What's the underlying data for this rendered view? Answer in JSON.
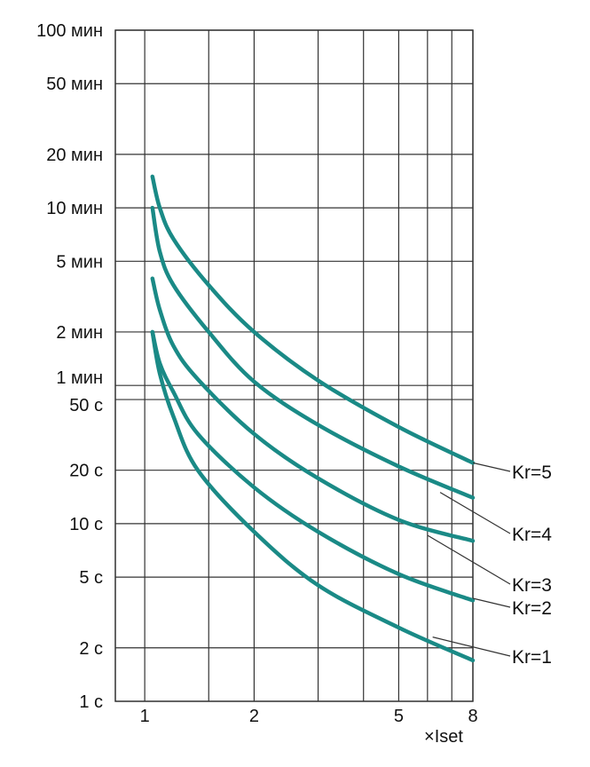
{
  "chart_data": {
    "type": "line",
    "title": "",
    "xlabel": "×Iset",
    "ylabel": "",
    "x_scale": "log",
    "y_scale": "log",
    "xlim": [
      0.83,
      8
    ],
    "ylim": [
      1,
      6000
    ],
    "grid": true,
    "x_ticks": [
      {
        "value": 1,
        "label": "1"
      },
      {
        "value": 2,
        "label": "2"
      },
      {
        "value": 5,
        "label": "5"
      },
      {
        "value": 8,
        "label": "8"
      }
    ],
    "x_gridlines": [
      1,
      1.5,
      2,
      3,
      4,
      5,
      6,
      7,
      8
    ],
    "y_ticks": [
      {
        "value": 1,
        "label": "1 с"
      },
      {
        "value": 2,
        "label": "2 с"
      },
      {
        "value": 5,
        "label": "5 с"
      },
      {
        "value": 10,
        "label": "10 с"
      },
      {
        "value": 20,
        "label": "20 с"
      },
      {
        "value": 50,
        "label": "50 с"
      },
      {
        "value": 60,
        "label": "1 мин"
      },
      {
        "value": 120,
        "label": "2 мин"
      },
      {
        "value": 300,
        "label": "5 мин"
      },
      {
        "value": 600,
        "label": "10 мин"
      },
      {
        "value": 1200,
        "label": "20 мин"
      },
      {
        "value": 3000,
        "label": "50 мин"
      },
      {
        "value": 6000,
        "label": "100 мин"
      }
    ],
    "series": [
      {
        "name": "Kr=1",
        "points": [
          [
            1.05,
            120
          ],
          [
            1.1,
            70
          ],
          [
            1.2,
            40
          ],
          [
            1.4,
            20
          ],
          [
            2,
            9
          ],
          [
            3,
            4.5
          ],
          [
            5,
            2.6
          ],
          [
            8,
            1.7
          ]
        ]
      },
      {
        "name": "Kr=2",
        "points": [
          [
            1.05,
            120
          ],
          [
            1.1,
            80
          ],
          [
            1.2,
            55
          ],
          [
            1.4,
            32
          ],
          [
            2,
            16
          ],
          [
            3,
            9
          ],
          [
            5,
            5.2
          ],
          [
            8,
            3.7
          ]
        ]
      },
      {
        "name": "Kr=3",
        "points": [
          [
            1.05,
            240
          ],
          [
            1.1,
            160
          ],
          [
            1.2,
            100
          ],
          [
            1.4,
            65
          ],
          [
            2,
            32
          ],
          [
            3,
            18
          ],
          [
            5,
            10.5
          ],
          [
            8,
            8
          ]
        ]
      },
      {
        "name": "Kr=4",
        "points": [
          [
            1.05,
            600
          ],
          [
            1.1,
            340
          ],
          [
            1.2,
            220
          ],
          [
            1.5,
            120
          ],
          [
            2,
            63
          ],
          [
            3,
            36
          ],
          [
            5,
            21
          ],
          [
            8,
            14
          ]
        ]
      },
      {
        "name": "Kr=5",
        "points": [
          [
            1.05,
            900
          ],
          [
            1.1,
            600
          ],
          [
            1.2,
            400
          ],
          [
            1.5,
            220
          ],
          [
            2,
            120
          ],
          [
            3,
            64
          ],
          [
            5,
            35
          ],
          [
            8,
            22
          ]
        ]
      }
    ],
    "label_anchors": [
      {
        "series": "Kr=5",
        "x": 8,
        "y": 22
      },
      {
        "series": "Kr=4",
        "x": 6.5,
        "y": 15
      },
      {
        "series": "Kr=3",
        "x": 6,
        "y": 8.6
      },
      {
        "series": "Kr=2",
        "x": 8,
        "y": 3.8
      },
      {
        "series": "Kr=1",
        "x": 6.2,
        "y": 2.3
      }
    ],
    "line_color": "#1a8a86"
  }
}
